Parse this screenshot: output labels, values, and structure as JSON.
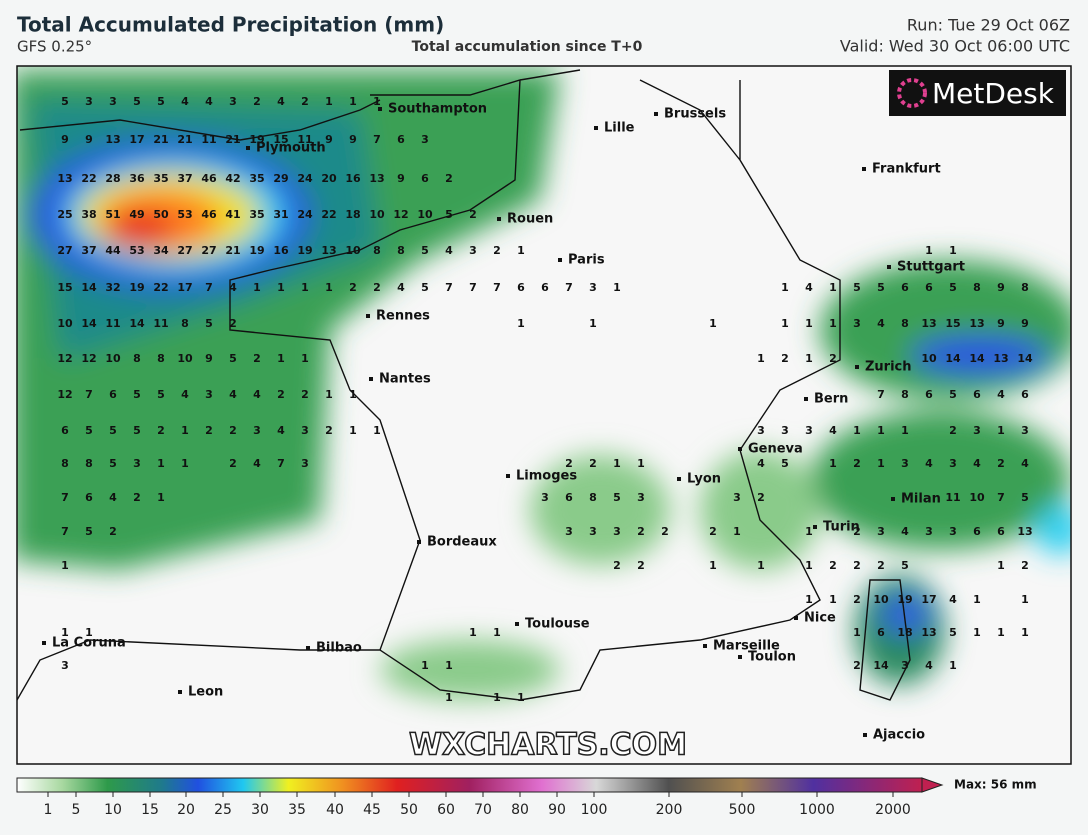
{
  "header": {
    "title": "Total Accumulated Precipitation (mm)",
    "model": "GFS 0.25°",
    "subtitle": "Total accumulation since T+0",
    "run": "Run: Tue 29 Oct 06Z",
    "valid": "Valid: Wed 30 Oct 06:00 UTC"
  },
  "logo": "MetDesk",
  "watermark": "WXCHARTS.COM",
  "cities": [
    "Southampton",
    "Lille",
    "Brussels",
    "Plymouth",
    "Frankfurt",
    "Rouen",
    "Paris",
    "Stuttgart",
    "Rennes",
    "Zurich",
    "Nantes",
    "Bern",
    "Geneva",
    "Limoges",
    "Lyon",
    "Milan",
    "Turin",
    "Bordeaux",
    "Nice",
    "La Coruna",
    "Bilbao",
    "Toulouse",
    "Marseille",
    "Toulon",
    "Leon",
    "Ajaccio"
  ],
  "grid_values": [
    [
      5,
      3,
      3,
      5,
      5,
      4,
      4,
      3,
      2,
      4,
      2,
      1,
      1,
      1,
      null,
      null,
      null,
      null,
      null,
      null,
      null,
      null,
      null,
      null,
      null,
      null,
      null,
      null,
      null,
      null,
      null,
      null,
      null,
      null,
      null,
      null,
      null,
      null,
      null,
      null,
      null
    ],
    [
      9,
      9,
      13,
      17,
      21,
      21,
      11,
      21,
      19,
      15,
      11,
      9,
      9,
      7,
      6,
      3,
      null,
      null,
      null,
      null,
      null,
      null,
      null,
      null,
      null,
      null,
      null,
      null,
      null,
      null,
      null,
      null,
      null,
      null,
      null,
      null,
      null,
      null,
      null,
      null,
      null
    ],
    [
      13,
      22,
      28,
      36,
      35,
      37,
      46,
      42,
      35,
      29,
      24,
      20,
      16,
      13,
      9,
      6,
      2,
      null,
      null,
      null,
      null,
      null,
      null,
      null,
      null,
      null,
      null,
      null,
      null,
      null,
      null,
      null,
      null,
      null,
      null,
      null,
      null,
      null,
      null,
      null,
      null
    ],
    [
      25,
      38,
      51,
      49,
      50,
      53,
      46,
      41,
      35,
      31,
      24,
      22,
      18,
      10,
      12,
      10,
      5,
      2,
      null,
      null,
      null,
      null,
      null,
      null,
      null,
      null,
      null,
      null,
      null,
      null,
      null,
      null,
      null,
      null,
      null,
      null,
      null,
      null,
      null,
      null,
      null
    ],
    [
      27,
      37,
      44,
      53,
      34,
      27,
      27,
      21,
      19,
      16,
      19,
      13,
      10,
      8,
      8,
      5,
      4,
      3,
      2,
      1,
      null,
      null,
      null,
      null,
      null,
      null,
      null,
      null,
      null,
      null,
      null,
      null,
      null,
      null,
      null,
      null,
      1,
      1,
      null,
      null,
      null
    ],
    [
      15,
      14,
      32,
      19,
      22,
      17,
      7,
      4,
      1,
      1,
      1,
      1,
      2,
      2,
      4,
      5,
      7,
      7,
      7,
      6,
      6,
      7,
      3,
      1,
      null,
      null,
      null,
      null,
      null,
      null,
      1,
      4,
      1,
      5,
      5,
      6,
      6,
      5,
      8,
      9,
      8
    ],
    [
      10,
      14,
      11,
      14,
      11,
      8,
      5,
      2,
      null,
      null,
      null,
      null,
      null,
      null,
      null,
      null,
      null,
      null,
      null,
      1,
      null,
      null,
      1,
      null,
      null,
      null,
      null,
      1,
      null,
      null,
      1,
      1,
      1,
      3,
      4,
      8,
      13,
      15,
      13,
      9,
      9
    ],
    [
      12,
      12,
      10,
      8,
      8,
      10,
      9,
      5,
      2,
      1,
      1,
      null,
      null,
      null,
      null,
      null,
      null,
      null,
      null,
      null,
      null,
      null,
      null,
      null,
      null,
      null,
      null,
      null,
      null,
      1,
      2,
      1,
      2,
      null,
      null,
      null,
      10,
      14,
      14,
      13,
      14
    ],
    [
      12,
      7,
      6,
      5,
      5,
      4,
      3,
      4,
      4,
      2,
      2,
      1,
      1,
      null,
      null,
      null,
      null,
      null,
      null,
      null,
      null,
      null,
      null,
      null,
      null,
      null,
      null,
      null,
      null,
      null,
      null,
      null,
      null,
      null,
      7,
      8,
      6,
      5,
      6,
      4,
      6
    ],
    [
      6,
      5,
      5,
      5,
      2,
      1,
      2,
      2,
      3,
      4,
      3,
      2,
      1,
      1,
      null,
      null,
      null,
      null,
      null,
      null,
      null,
      null,
      null,
      null,
      null,
      null,
      null,
      null,
      null,
      3,
      3,
      3,
      4,
      1,
      1,
      1,
      null,
      2,
      3,
      1,
      3
    ],
    [
      8,
      8,
      5,
      3,
      1,
      1,
      null,
      2,
      4,
      7,
      3,
      null,
      null,
      null,
      null,
      null,
      null,
      null,
      null,
      null,
      null,
      2,
      2,
      1,
      1,
      null,
      null,
      null,
      null,
      4,
      5,
      null,
      1,
      2,
      1,
      3,
      4,
      3,
      4,
      2,
      4
    ],
    [
      7,
      6,
      4,
      2,
      1,
      null,
      null,
      null,
      null,
      null,
      null,
      null,
      null,
      null,
      null,
      null,
      null,
      null,
      null,
      null,
      3,
      6,
      8,
      5,
      3,
      null,
      null,
      null,
      3,
      2,
      null,
      null,
      null,
      null,
      null,
      null,
      null,
      11,
      10,
      7,
      5
    ],
    [
      7,
      5,
      2,
      null,
      null,
      null,
      null,
      null,
      null,
      null,
      null,
      null,
      null,
      null,
      null,
      null,
      null,
      null,
      null,
      null,
      null,
      3,
      3,
      3,
      2,
      2,
      null,
      2,
      1,
      null,
      null,
      1,
      null,
      2,
      3,
      4,
      3,
      3,
      6,
      6,
      13
    ],
    [
      1,
      null,
      null,
      null,
      null,
      null,
      null,
      null,
      null,
      null,
      null,
      null,
      null,
      null,
      null,
      null,
      null,
      null,
      null,
      null,
      null,
      null,
      null,
      2,
      2,
      null,
      null,
      1,
      null,
      1,
      null,
      1,
      2,
      2,
      2,
      5,
      null,
      null,
      null,
      1,
      2
    ],
    [
      null,
      null,
      null,
      null,
      null,
      null,
      null,
      null,
      null,
      null,
      null,
      null,
      null,
      null,
      null,
      null,
      null,
      null,
      null,
      null,
      null,
      null,
      null,
      null,
      null,
      null,
      null,
      null,
      null,
      null,
      null,
      1,
      1,
      2,
      10,
      19,
      17,
      4,
      1,
      null,
      1
    ],
    [
      1,
      1,
      null,
      null,
      null,
      null,
      null,
      null,
      null,
      null,
      null,
      null,
      null,
      null,
      null,
      null,
      null,
      1,
      1,
      null,
      null,
      null,
      null,
      null,
      null,
      null,
      null,
      null,
      null,
      null,
      null,
      null,
      null,
      1,
      6,
      18,
      13,
      5,
      1,
      1,
      1
    ],
    [
      3,
      null,
      null,
      null,
      null,
      null,
      null,
      null,
      null,
      null,
      null,
      null,
      null,
      null,
      null,
      1,
      1,
      null,
      null,
      null,
      null,
      null,
      null,
      null,
      null,
      null,
      null,
      null,
      null,
      null,
      null,
      null,
      null,
      2,
      14,
      3,
      4,
      1,
      null,
      null,
      null
    ],
    [
      null,
      null,
      null,
      null,
      null,
      null,
      null,
      null,
      null,
      null,
      null,
      null,
      null,
      null,
      null,
      null,
      1,
      null,
      1,
      1,
      null,
      null,
      null,
      null,
      null,
      null,
      null,
      null,
      null,
      null,
      null,
      null,
      null,
      null,
      null,
      null,
      null,
      null,
      null,
      null,
      null
    ]
  ],
  "colorbar": {
    "ticks": [
      1,
      5,
      10,
      15,
      20,
      25,
      30,
      35,
      40,
      45,
      50,
      60,
      70,
      80,
      90,
      100,
      200,
      500,
      1000,
      2000
    ],
    "max_label": "Max: 56 mm"
  }
}
